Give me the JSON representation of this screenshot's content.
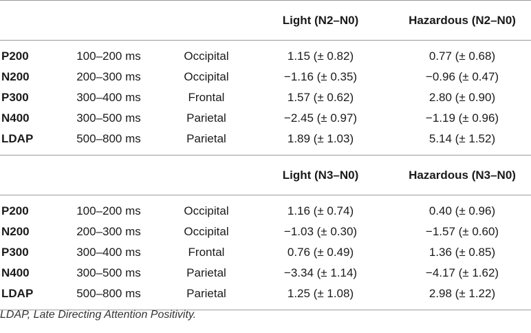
{
  "blocks": [
    {
      "headers": [
        "",
        "",
        "",
        "Light (N2–N0)",
        "Hazardous (N2–N0)"
      ],
      "rows": [
        {
          "component": "P200",
          "window": "100–200 ms",
          "region": "Occipital",
          "light": "1.15 (± 0.82)",
          "hazardous": "0.77 (± 0.68)"
        },
        {
          "component": "N200",
          "window": "200–300 ms",
          "region": "Occipital",
          "light": "−1.16 (± 0.35)",
          "hazardous": "−0.96 (± 0.47)"
        },
        {
          "component": "P300",
          "window": "300–400 ms",
          "region": "Frontal",
          "light": "1.57 (± 0.62)",
          "hazardous": "2.80 (± 0.90)"
        },
        {
          "component": "N400",
          "window": "300–500 ms",
          "region": "Parietal",
          "light": "−2.45 (± 0.97)",
          "hazardous": "−1.19 (± 0.96)"
        },
        {
          "component": "LDAP",
          "window": "500–800 ms",
          "region": "Parietal",
          "light": "1.89 (± 1.03)",
          "hazardous": "5.14 (± 1.52)"
        }
      ]
    },
    {
      "headers": [
        "",
        "",
        "",
        "Light (N3–N0)",
        "Hazardous (N3–N0)"
      ],
      "rows": [
        {
          "component": "P200",
          "window": "100–200 ms",
          "region": "Occipital",
          "light": "1.16 (± 0.74)",
          "hazardous": "0.40 (± 0.96)"
        },
        {
          "component": "N200",
          "window": "200–300 ms",
          "region": "Occipital",
          "light": "−1.03 (± 0.30)",
          "hazardous": "−1.57 (± 0.60)"
        },
        {
          "component": "P300",
          "window": "300–400 ms",
          "region": "Frontal",
          "light": "0.76 (± 0.49)",
          "hazardous": "1.36 (± 0.85)"
        },
        {
          "component": "N400",
          "window": "300–500 ms",
          "region": "Parietal",
          "light": "−3.34 (± 1.14)",
          "hazardous": "−4.17 (± 1.62)"
        },
        {
          "component": "LDAP",
          "window": "500–800 ms",
          "region": "Parietal",
          "light": "1.25 (± 1.08)",
          "hazardous": "2.98 (± 1.22)"
        }
      ]
    }
  ],
  "footnote": "LDAP, Late Directing Attention Positivity."
}
